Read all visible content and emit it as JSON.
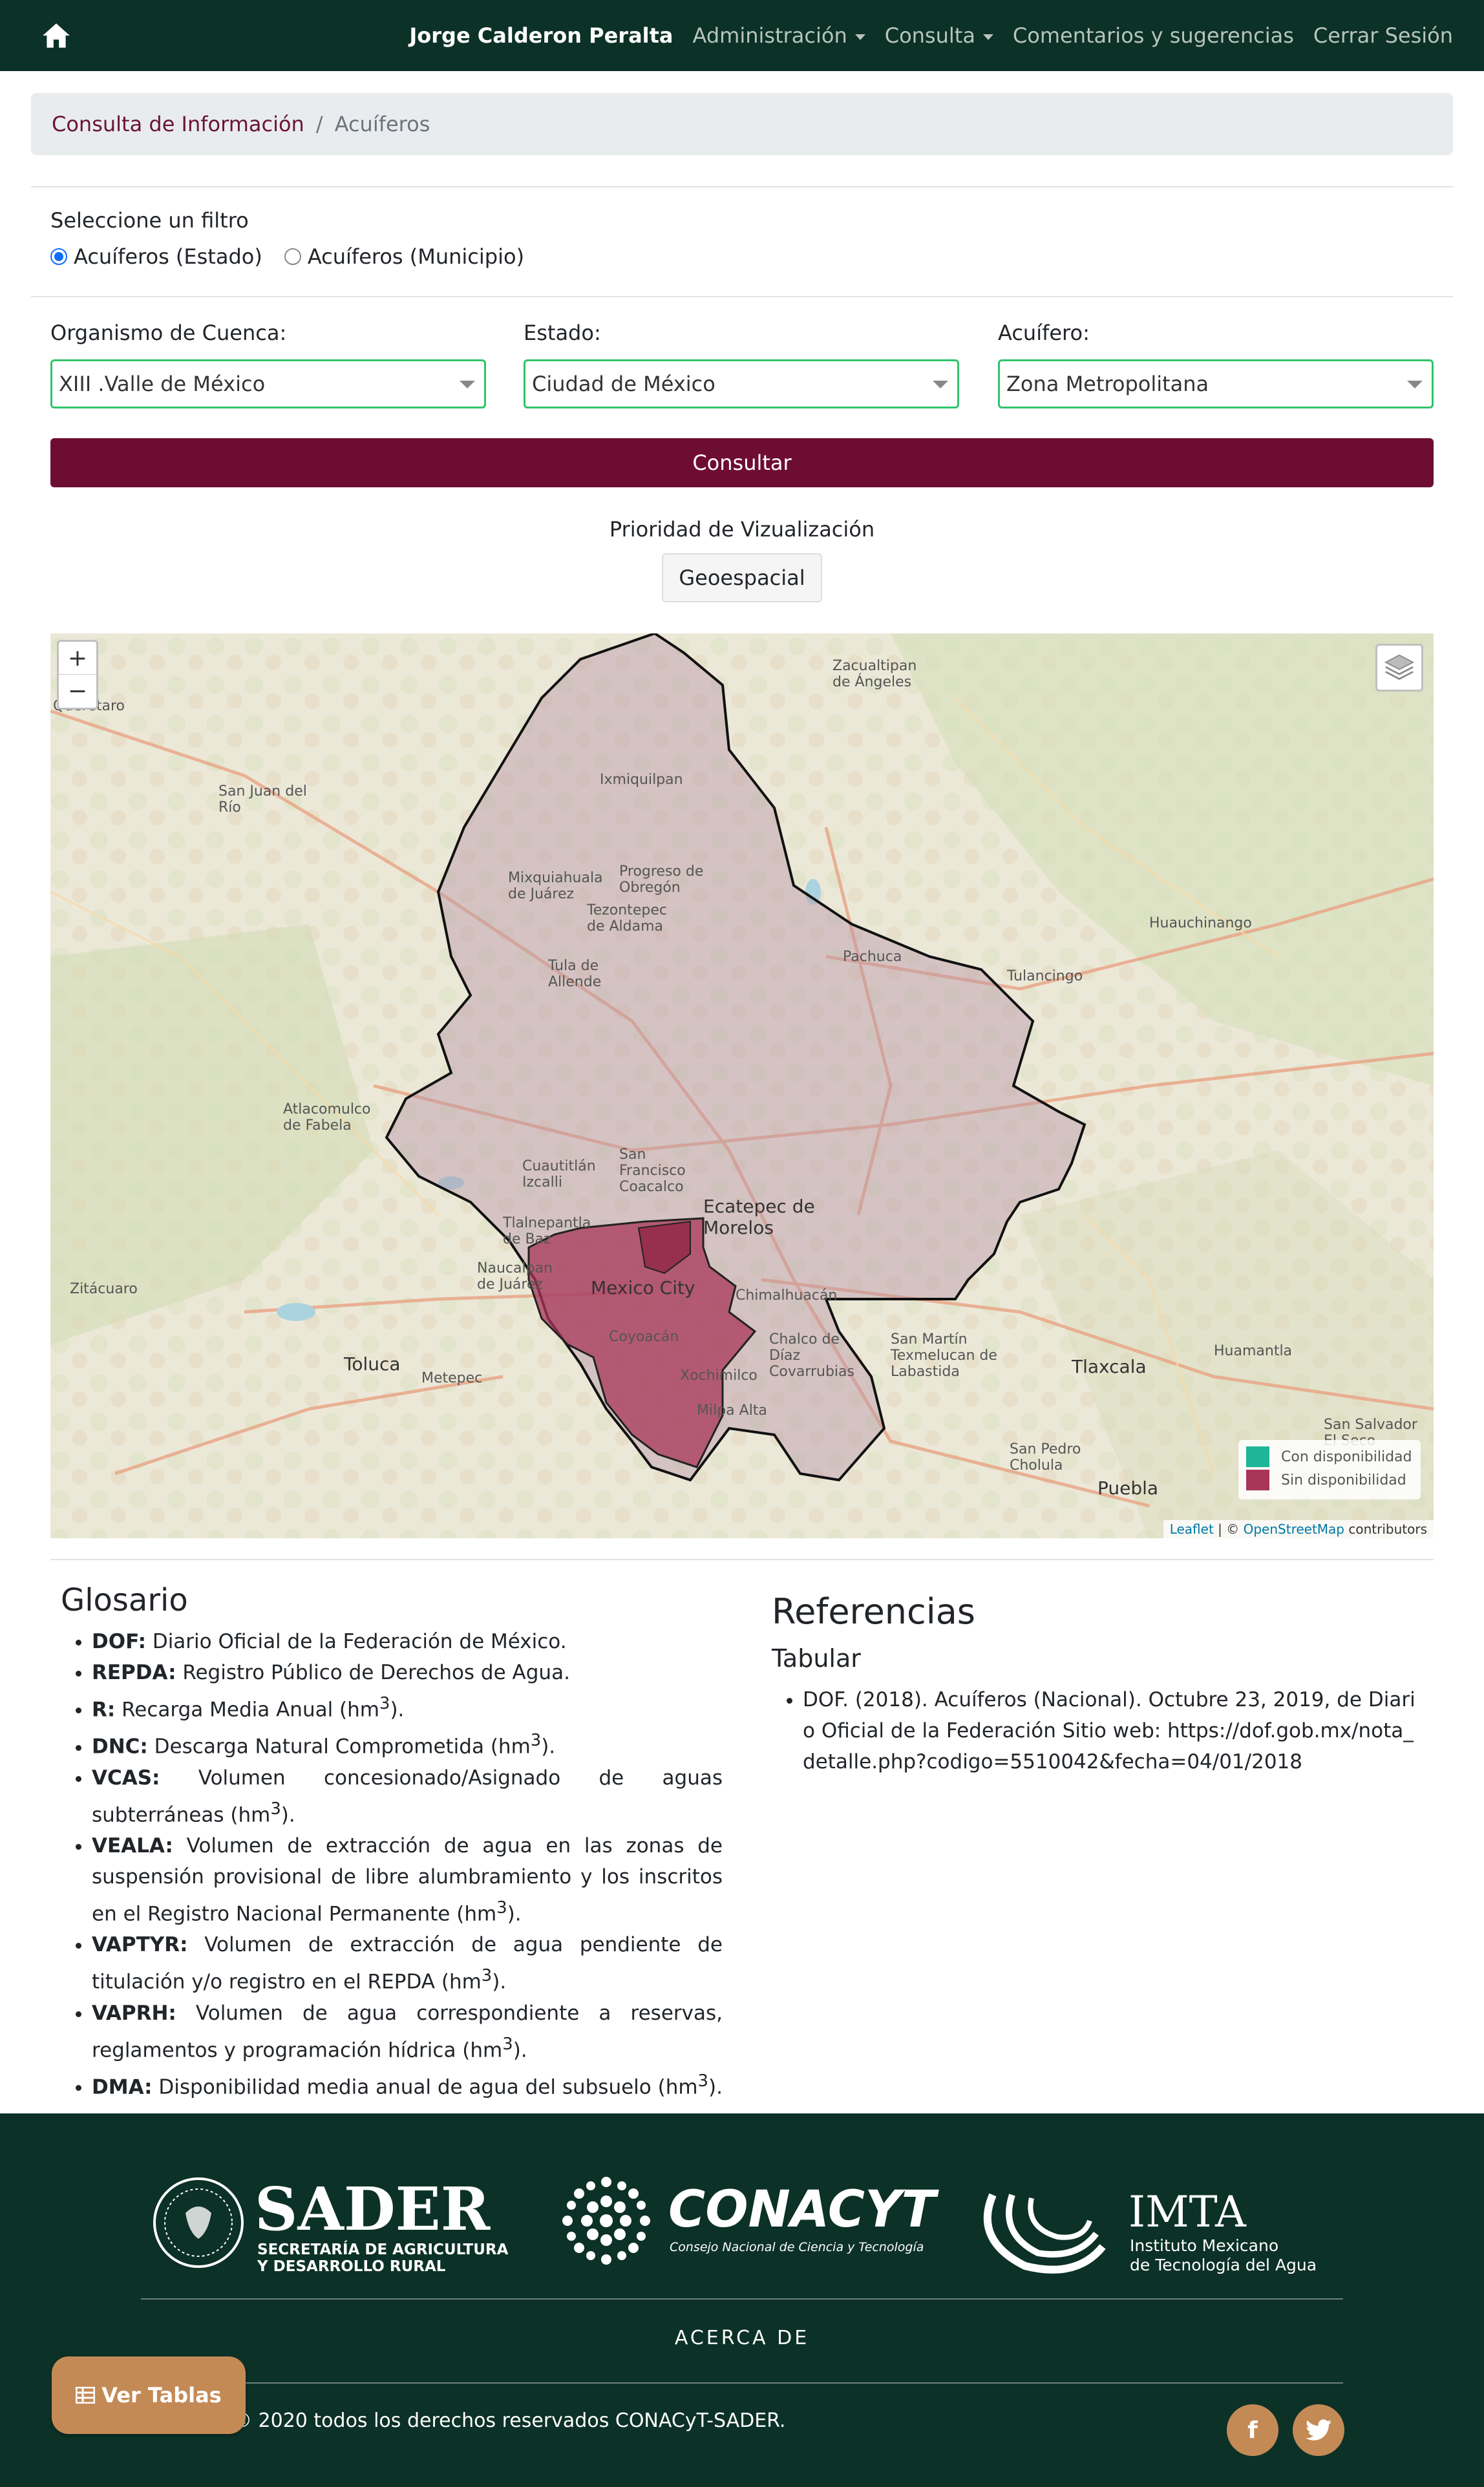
{
  "navbar": {
    "home_icon": "home-icon",
    "user": "Jorge Calderon Peralta",
    "admin": "Administración",
    "consulta": "Consulta",
    "comentarios": "Comentarios y sugerencias",
    "cerrar": "Cerrar Sesión"
  },
  "breadcrumb": {
    "item1": "Consulta de Información",
    "separator": "/",
    "item2": "Acuíferos"
  },
  "filter": {
    "title": "Seleccione un filtro",
    "options": [
      "Acuíferos (Estado)",
      "Acuíferos (Municipio)"
    ],
    "selected": "Acuíferos (Estado)"
  },
  "form": {
    "organismo_label": "Organismo de Cuenca:",
    "organismo_value": "XIII .Valle de México",
    "estado_label": "Estado:",
    "estado_value": "Ciudad de México",
    "acuifero_label": "Acuífero:",
    "acuifero_value": "Zona Metropolitana",
    "consultar": "Consultar"
  },
  "prioridad": {
    "title": "Prioridad de Vizualización",
    "button": "Geoespacial"
  },
  "map": {
    "zoom_in": "+",
    "zoom_out": "−",
    "layers_icon": "layers-icon",
    "legend": [
      {
        "label": "Con disponibilidad",
        "color": "#1fb59a"
      },
      {
        "label": "Sin disponibilidad",
        "color": "#a8365a"
      }
    ],
    "attribution_leaflet": "Leaflet",
    "attribution_sep": " | © ",
    "attribution_osm": "OpenStreetMap",
    "attribution_rest": " contributors",
    "places": {
      "queretaro": "Querétaro",
      "zacualtipan": "Zacualtipan de Ángeles",
      "sanjuan": "San Juan del Río",
      "ixmiquilpan": "Ixmiquilpan",
      "mixquiahuala": "Mixquiahuala de Juárez",
      "progreso": "Progreso de Obregón",
      "tezontepec": "Tezontepec de Aldama",
      "huauchinango": "Huauchinango",
      "pachuca": "Pachuca",
      "tulancingo": "Tulancingo",
      "tula": "Tula de Allende",
      "atlacomulco": "Atlacomulco de Fabela",
      "cuautitlan": "Cuautitlán Izcalli",
      "sanfrancisco": "San Francisco Coacalco",
      "ecatepec": "Ecatepec de Morelos",
      "tlalnepantla": "Tlalnepantla de Baz",
      "naucalpan": "Naucalpan de Juárez",
      "mexicocity": "Mexico City",
      "chimalhuacan": "Chimalhuacán",
      "zitacuaro": "Zitácuaro",
      "coyoacan": "Coyoacán",
      "chalco": "Chalco de Díaz Covarrubias",
      "sanmartin": "San Martín Texmelucan de Labastida",
      "tlaxcala": "Tlaxcala",
      "huamantla": "Huamantla",
      "toluca": "Toluca",
      "metepec": "Metepec",
      "xochimilco": "Xochimilco",
      "milpaalta": "Milpa Alta",
      "sansalvador": "San Salvador El Seco",
      "sanpedro": "San Pedro Cholula",
      "puebla": "Puebla"
    }
  },
  "glosario": {
    "title": "Glosario",
    "items": [
      {
        "term": "DOF:",
        "def": " Diario Oficial de la Federación de México."
      },
      {
        "term": "REPDA:",
        "def": " Registro Público de Derechos de Agua."
      },
      {
        "term": "R:",
        "def": " Recarga Media Anual (hm"
      },
      {
        "term": "DNC:",
        "def": " Descarga Natural Comprometida (hm"
      },
      {
        "term": "VCAS:",
        "def": " Volumen concesionado/Asignado de aguas subterráneas (hm"
      },
      {
        "term": "VEALA:",
        "def": " Volumen de extracción de agua en las zonas de suspensión provisional de libre alumbramiento y los inscritos en el Registro Nacional Permanente (hm"
      },
      {
        "term": "VAPTYR:",
        "def": " Volumen de extracción de agua pendiente de titulación y/o registro en el REPDA (hm"
      },
      {
        "term": "VAPRH:",
        "def": " Volumen de agua correspondiente a reservas, reglamentos y programación hídrica (hm"
      },
      {
        "term": "DMA:",
        "def": " Disponibilidad media anual de agua del subsuelo (hm"
      }
    ],
    "sup": "3",
    "close": ").",
    "close_dma": ")."
  },
  "referencias": {
    "title": "Referencias",
    "subtitle": "Tabular",
    "item": "DOF. (2018). Acuíferos (Nacional). Octubre 23, 2019, de Diario Oficial de la Federación Sitio web: https://dof.gob.mx/nota_detalle.php?codigo=5510042&fecha=04/01/2018"
  },
  "footer": {
    "sader": "SADER",
    "sader_sub1": "SECRETARÍA DE AGRICULTURA",
    "sader_sub2": "Y DESARROLLO RURAL",
    "conacyt": "CONACYT",
    "conacyt_sub": "Consejo Nacional de Ciencia y Tecnología",
    "imta": "IMTA",
    "imta_sub1": "Instituto Mexicano",
    "imta_sub2": "de Tecnología del Agua",
    "acerca": "ACERCA DE",
    "copyright": "© 2020 todos los derechos reservados CONACyT-SADER.",
    "ver_tablas": "Ver Tablas",
    "facebook": "f",
    "twitter": "t"
  },
  "colors": {
    "nav": "#0c3127",
    "accent": "#6e0d32",
    "footer_btn": "#c48a56"
  }
}
